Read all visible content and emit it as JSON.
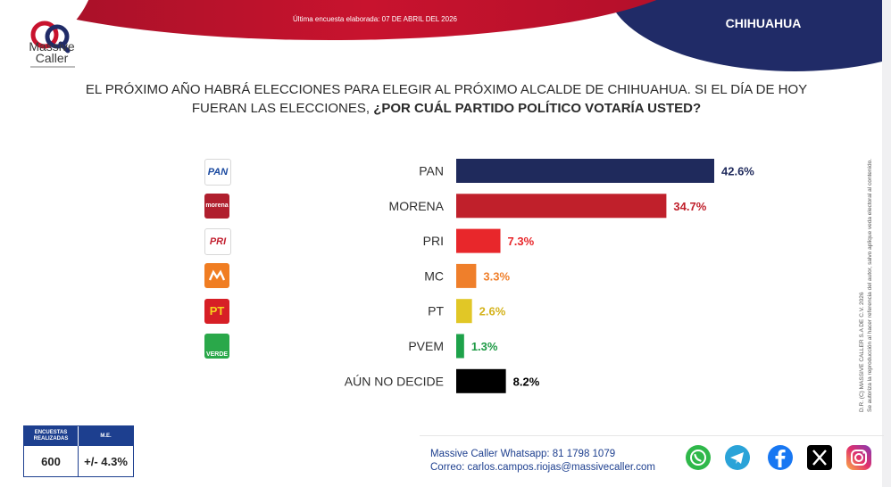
{
  "header": {
    "note": "Última encuesta elaborada: 07 DE ABRIL DEL 2026",
    "region": "CHIHUAHUA",
    "logo": {
      "icon": "massive-caller-logo-icon",
      "line1": "Massive",
      "line2": "Caller"
    }
  },
  "question": {
    "line1": "EL PRÓXIMO AÑO HABRÁ ELECCIONES PARA ELEGIR AL PRÓXIMO ALCALDE DE CHIHUAHUA. SI EL DÍA DE HOY",
    "line2_normal": "FUERAN LAS ELECCIONES, ",
    "line2_bold": "¿POR CUÁL PARTIDO POLÍTICO VOTARÍA USTED?"
  },
  "chart_data": {
    "type": "bar",
    "orientation": "horizontal",
    "categories": [
      "PAN",
      "MORENA",
      "PRI",
      "MC",
      "PT",
      "PVEM",
      "AÚN NO DECIDE"
    ],
    "values": [
      42.6,
      34.7,
      7.3,
      3.3,
      2.6,
      1.3,
      8.2
    ],
    "value_labels": [
      "42.6%",
      "34.7%",
      "7.3%",
      "3.3%",
      "2.6%",
      "1.3%",
      "8.2%"
    ],
    "colors": [
      "#1f2a5c",
      "#c0202b",
      "#e8272b",
      "#ef7f2b",
      "#e1c726",
      "#1ea24a",
      "#000000"
    ],
    "label_colors": [
      "#1f2a5c",
      "#c0202b",
      "#e8272b",
      "#ef7f2b",
      "#d4b21a",
      "#1e9a45",
      "#000000"
    ],
    "xlim": [
      0,
      42.6
    ],
    "grid": false,
    "party_logos": [
      {
        "icon": "pan-logo-icon",
        "text": "PAN",
        "bg": "#ffffff",
        "fg": "#1b4aa0"
      },
      {
        "icon": "morena-logo-icon",
        "text": "morena",
        "bg": "#b01f2e",
        "fg": "#ffffff"
      },
      {
        "icon": "pri-logo-icon",
        "text": "PRI",
        "bg": "#ffffff",
        "fg": "#c21f2f"
      },
      {
        "icon": "mc-logo-icon",
        "text": "",
        "bg": "#f07d22",
        "fg": "#ffffff"
      },
      {
        "icon": "pt-logo-icon",
        "text": "PT",
        "bg": "#d71f26",
        "fg": "#f6d31d"
      },
      {
        "icon": "pvem-logo-icon",
        "text": "VERDE",
        "bg": "#2aa84a",
        "fg": "#ffffff"
      }
    ]
  },
  "legal": {
    "line1": "D.R. (C) MASSIVE CALLER S.A DE C.V. 2026",
    "line2": "Se autoriza la reproducción al hacer referencia del autor, salvo aplique veda electoral al contenido."
  },
  "stats": {
    "encuestas_label": "ENCUESTAS REALIZADAS",
    "me_label": "M.E.",
    "encuestas_value": "600",
    "me_value": "+/- 4.3%"
  },
  "contact": {
    "whatsapp": "Massive Caller Whatsapp: 81 1798 1079",
    "email": "Correo: carlos.campos.riojas@massivecaller.com"
  },
  "social": [
    "whatsapp-icon",
    "telegram-icon",
    "facebook-icon",
    "x-icon",
    "instagram-icon"
  ]
}
